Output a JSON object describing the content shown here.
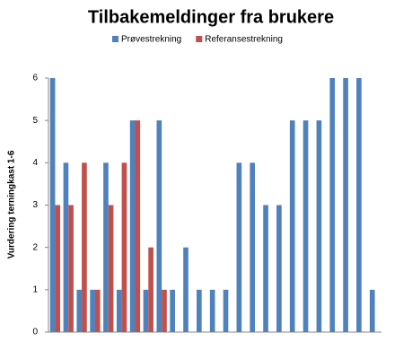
{
  "chart_data": {
    "type": "bar",
    "title": "Tilbakemeldinger fra brukere",
    "ylabel": "Vurdering terningkast 1-6",
    "categories": [
      null,
      null,
      null,
      null,
      null,
      null,
      null,
      null,
      null,
      null,
      null,
      null,
      null,
      null,
      null,
      null,
      null,
      null,
      null,
      null,
      null,
      null,
      null,
      null,
      null
    ],
    "series": [
      {
        "name": "Prøvestrekning",
        "color": "#4f81bd",
        "values": [
          6,
          4,
          1,
          1,
          4,
          1,
          5,
          1,
          5,
          1,
          2,
          1,
          1,
          1,
          4,
          4,
          3,
          3,
          5,
          5,
          5,
          6,
          6,
          6,
          1
        ]
      },
      {
        "name": "Referansestrekning",
        "color": "#c0504d",
        "values": [
          3,
          3,
          4,
          1,
          3,
          4,
          5,
          2,
          1,
          null,
          null,
          null,
          null,
          null,
          null,
          null,
          null,
          null,
          null,
          null,
          null,
          null,
          null,
          null,
          null
        ]
      }
    ],
    "ylim": [
      0,
      6
    ],
    "yticks": [
      0,
      1,
      2,
      3,
      4,
      5,
      6
    ],
    "grid": false,
    "legend": "top"
  }
}
